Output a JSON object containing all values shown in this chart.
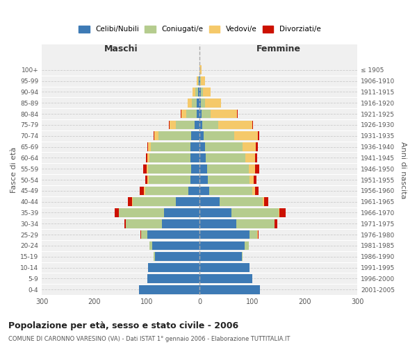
{
  "age_groups": [
    "0-4",
    "5-9",
    "10-14",
    "15-19",
    "20-24",
    "25-29",
    "30-34",
    "35-39",
    "40-44",
    "45-49",
    "50-54",
    "55-59",
    "60-64",
    "65-69",
    "70-74",
    "75-79",
    "80-84",
    "85-89",
    "90-94",
    "95-99",
    "100+"
  ],
  "birth_years": [
    "2001-2005",
    "1996-2000",
    "1991-1995",
    "1986-1990",
    "1981-1985",
    "1976-1980",
    "1971-1975",
    "1966-1970",
    "1961-1965",
    "1956-1960",
    "1951-1955",
    "1946-1950",
    "1941-1945",
    "1936-1940",
    "1931-1935",
    "1926-1930",
    "1921-1925",
    "1916-1920",
    "1911-1915",
    "1906-1910",
    "≤ 1905"
  ],
  "maschi": {
    "celibi": [
      115,
      100,
      98,
      85,
      90,
      100,
      72,
      68,
      45,
      22,
      17,
      16,
      17,
      18,
      16,
      10,
      5,
      5,
      3,
      1,
      0
    ],
    "coniugati": [
      0,
      0,
      0,
      2,
      5,
      12,
      68,
      85,
      82,
      82,
      80,
      82,
      78,
      75,
      62,
      35,
      20,
      10,
      5,
      2,
      0
    ],
    "vedovi": [
      0,
      0,
      0,
      0,
      0,
      0,
      1,
      1,
      1,
      2,
      2,
      3,
      4,
      5,
      8,
      12,
      10,
      8,
      5,
      2,
      0
    ],
    "divorziati": [
      0,
      0,
      0,
      0,
      1,
      1,
      2,
      8,
      8,
      8,
      5,
      7,
      3,
      2,
      2,
      1,
      1,
      0,
      0,
      0,
      0
    ]
  },
  "femmine": {
    "nubili": [
      115,
      100,
      95,
      80,
      85,
      95,
      70,
      60,
      38,
      18,
      15,
      14,
      12,
      10,
      8,
      5,
      3,
      2,
      2,
      1,
      0
    ],
    "coniugate": [
      0,
      0,
      0,
      2,
      8,
      15,
      72,
      90,
      82,
      82,
      80,
      80,
      75,
      72,
      58,
      30,
      18,
      8,
      4,
      1,
      0
    ],
    "vedove": [
      0,
      0,
      0,
      0,
      0,
      1,
      1,
      2,
      3,
      5,
      8,
      12,
      18,
      25,
      45,
      65,
      50,
      30,
      15,
      8,
      3
    ],
    "divorziate": [
      0,
      0,
      0,
      0,
      0,
      1,
      5,
      12,
      8,
      7,
      5,
      7,
      4,
      4,
      2,
      1,
      1,
      0,
      0,
      0,
      0
    ]
  },
  "colors": {
    "celibi_nubili": "#3d7ab5",
    "coniugati": "#b5cc8e",
    "vedovi": "#f5c96a",
    "divorziati": "#cc1100"
  },
  "title": "Popolazione per età, sesso e stato civile - 2006",
  "subtitle": "COMUNE DI CARONNO VARESINO (VA) - Dati ISTAT 1° gennaio 2006 - Elaborazione TUTTITALIA.IT",
  "ylabel_left": "Fasce di età",
  "ylabel_right": "Anni di nascita",
  "xlabel_left": "Maschi",
  "xlabel_right": "Femmine",
  "xlim": 300,
  "bg_color": "#f0f0f0",
  "grid_color": "#cccccc"
}
